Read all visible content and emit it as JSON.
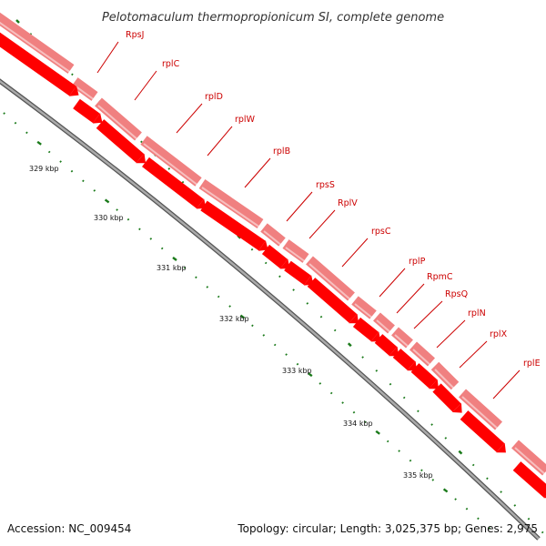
{
  "title": "Pelotomaculum thermopropionicum SI, complete genome",
  "footer": {
    "accession": "Accession: NC_009454",
    "topology": "Topology: circular; Length: 3,025,375 bp; Genes: 2,975"
  },
  "colors": {
    "cds_dark": "#ff0000",
    "cds_light": "#f08080",
    "backbone": "#808080",
    "tick": "#1a7a1a",
    "label": "#cc0000"
  },
  "kbp_labels": [
    "329 kbp",
    "330 kbp",
    "331 kbp",
    "332 kbp",
    "333 kbp",
    "334 kbp",
    "335 kbp"
  ],
  "genes": [
    {
      "name": "RpsJ"
    },
    {
      "name": "rplC"
    },
    {
      "name": "rplD"
    },
    {
      "name": "rplW"
    },
    {
      "name": "rplB"
    },
    {
      "name": "rpsS"
    },
    {
      "name": "RplV"
    },
    {
      "name": "rpsC"
    },
    {
      "name": "rplP"
    },
    {
      "name": "RpmC"
    },
    {
      "name": "RpsQ"
    },
    {
      "name": "rplN"
    },
    {
      "name": "rplX"
    },
    {
      "name": "rplE"
    }
  ]
}
